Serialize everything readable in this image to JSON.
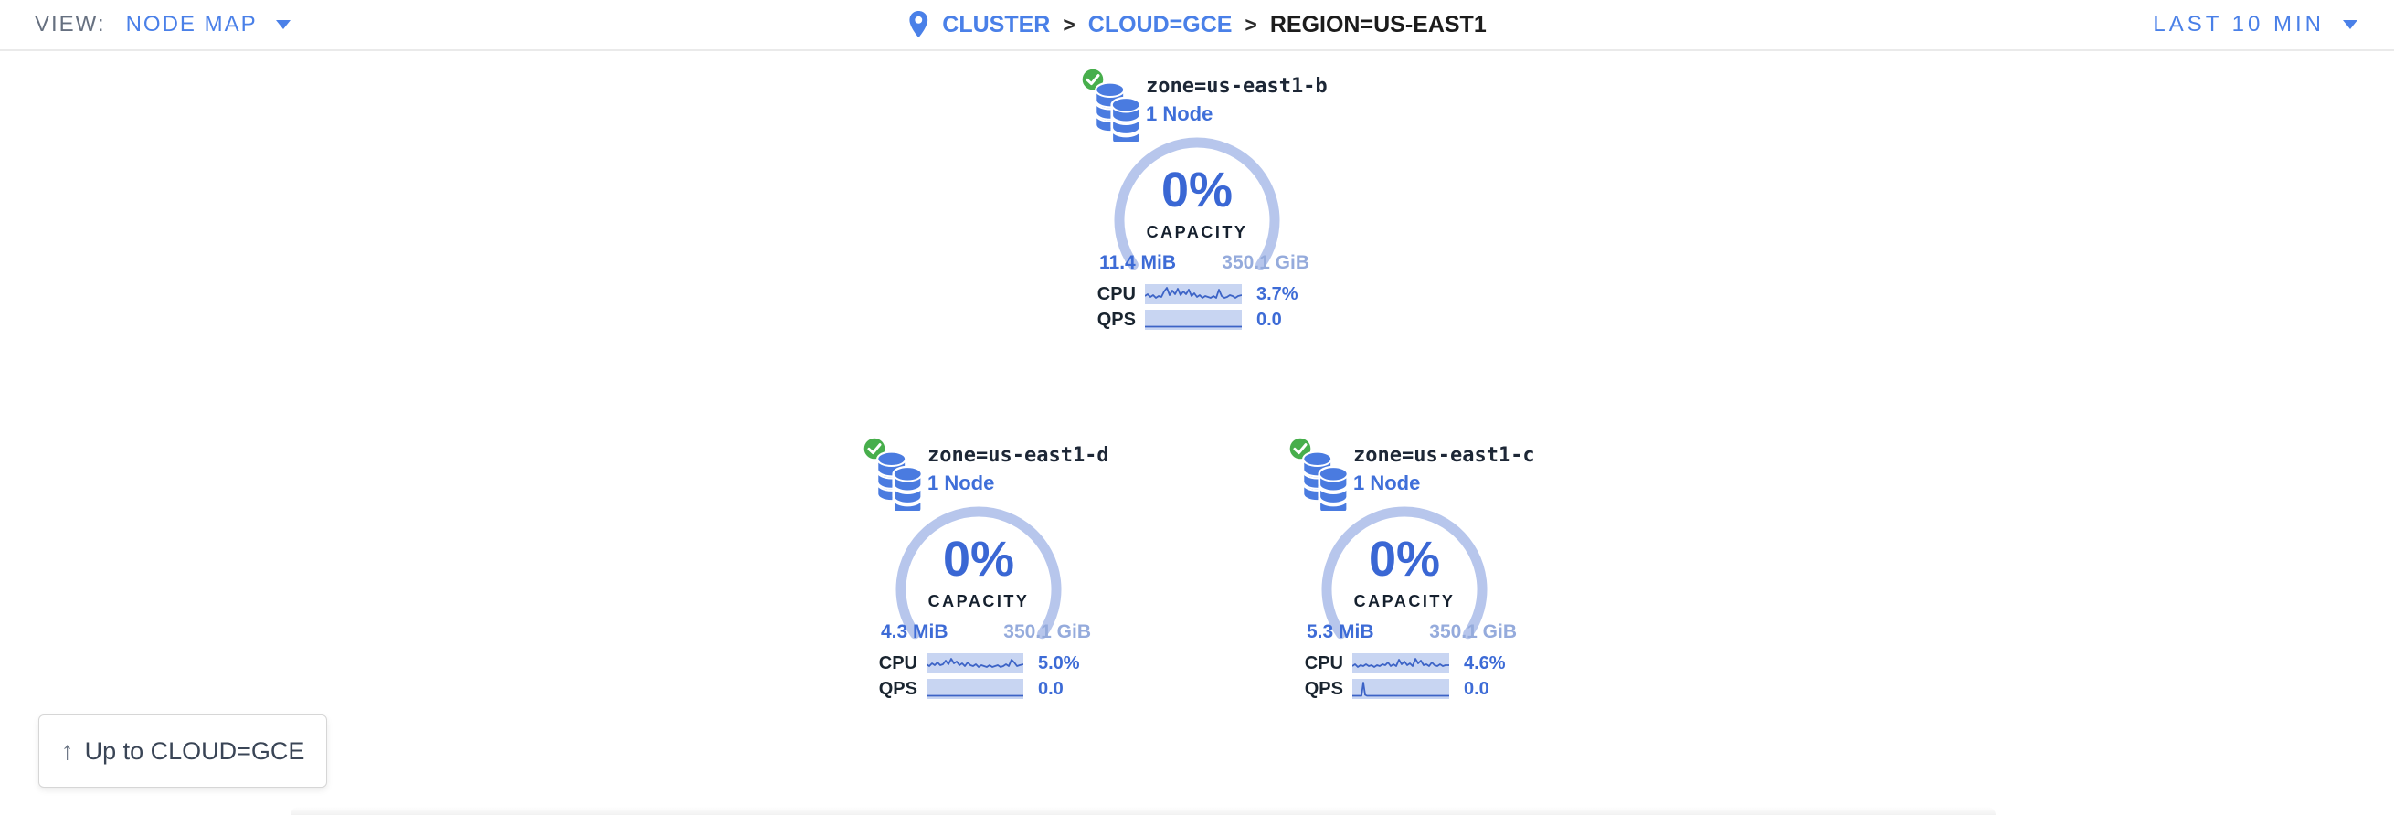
{
  "topbar": {
    "view_label": "VIEW:",
    "view_value": "NODE MAP",
    "time_range": "LAST 10 MIN",
    "breadcrumb": {
      "separator": ">",
      "items": [
        {
          "label": "CLUSTER"
        },
        {
          "label": "CLOUD=GCE"
        },
        {
          "label": "REGION=US-EAST1"
        }
      ]
    }
  },
  "zones": [
    {
      "name": "zone=us-east1-b",
      "nodes": "1 Node",
      "capacity_pct": "0%",
      "capacity_label": "CAPACITY",
      "used": "11.4 MiB",
      "total": "350.1 GiB",
      "cpu_label": "CPU",
      "cpu_value": "3.7%",
      "qps_label": "QPS",
      "qps_value": "0.0",
      "cpu_spark": [
        [
          0,
          13
        ],
        [
          3,
          11
        ],
        [
          6,
          14
        ],
        [
          9,
          12
        ],
        [
          12,
          15
        ],
        [
          15,
          13
        ],
        [
          18,
          14
        ],
        [
          21,
          8
        ],
        [
          24,
          4
        ],
        [
          27,
          12
        ],
        [
          30,
          7
        ],
        [
          33,
          11
        ],
        [
          36,
          5
        ],
        [
          39,
          12
        ],
        [
          42,
          8
        ],
        [
          45,
          11
        ],
        [
          48,
          6
        ],
        [
          51,
          13
        ],
        [
          54,
          10
        ],
        [
          57,
          14
        ],
        [
          60,
          12
        ],
        [
          63,
          15
        ],
        [
          66,
          13
        ],
        [
          69,
          14
        ],
        [
          72,
          15
        ],
        [
          75,
          13
        ],
        [
          78,
          15
        ],
        [
          81,
          6
        ],
        [
          84,
          13
        ],
        [
          87,
          15
        ],
        [
          90,
          14
        ],
        [
          93,
          12
        ],
        [
          96,
          13
        ],
        [
          99,
          15
        ],
        [
          102,
          13
        ],
        [
          106,
          12
        ]
      ],
      "qps_spark": [
        [
          0,
          18.5
        ],
        [
          106,
          18.5
        ]
      ]
    },
    {
      "name": "zone=us-east1-d",
      "nodes": "1 Node",
      "capacity_pct": "0%",
      "capacity_label": "CAPACITY",
      "used": "4.3 MiB",
      "total": "350.1 GiB",
      "cpu_label": "CPU",
      "cpu_value": "5.0%",
      "qps_label": "QPS",
      "qps_value": "0.0",
      "cpu_spark": [
        [
          0,
          12
        ],
        [
          3,
          14
        ],
        [
          6,
          11
        ],
        [
          9,
          13
        ],
        [
          12,
          10
        ],
        [
          15,
          13
        ],
        [
          18,
          12
        ],
        [
          21,
          8
        ],
        [
          24,
          12
        ],
        [
          27,
          6
        ],
        [
          30,
          11
        ],
        [
          33,
          9
        ],
        [
          36,
          13
        ],
        [
          39,
          11
        ],
        [
          42,
          14
        ],
        [
          45,
          10
        ],
        [
          48,
          13
        ],
        [
          51,
          14
        ],
        [
          54,
          12
        ],
        [
          57,
          15
        ],
        [
          60,
          13
        ],
        [
          63,
          14
        ],
        [
          66,
          15
        ],
        [
          69,
          13
        ],
        [
          72,
          15
        ],
        [
          75,
          14
        ],
        [
          78,
          13
        ],
        [
          81,
          15
        ],
        [
          84,
          14
        ],
        [
          87,
          12
        ],
        [
          90,
          14
        ],
        [
          93,
          7
        ],
        [
          96,
          10
        ],
        [
          99,
          14
        ],
        [
          102,
          13
        ],
        [
          106,
          12
        ]
      ],
      "qps_spark": [
        [
          0,
          18.5
        ],
        [
          106,
          18.5
        ]
      ]
    },
    {
      "name": "zone=us-east1-c",
      "nodes": "1 Node",
      "capacity_pct": "0%",
      "capacity_label": "CAPACITY",
      "used": "5.3 MiB",
      "total": "350.1 GiB",
      "cpu_label": "CPU",
      "cpu_value": "4.6%",
      "qps_label": "QPS",
      "qps_value": "0.0",
      "cpu_spark": [
        [
          0,
          14
        ],
        [
          3,
          12
        ],
        [
          6,
          15
        ],
        [
          9,
          13
        ],
        [
          12,
          14
        ],
        [
          15,
          12
        ],
        [
          18,
          14
        ],
        [
          21,
          13
        ],
        [
          24,
          15
        ],
        [
          27,
          13
        ],
        [
          30,
          14
        ],
        [
          33,
          12
        ],
        [
          36,
          13
        ],
        [
          39,
          10
        ],
        [
          42,
          14
        ],
        [
          45,
          12
        ],
        [
          48,
          14
        ],
        [
          51,
          7
        ],
        [
          54,
          12
        ],
        [
          57,
          9
        ],
        [
          60,
          13
        ],
        [
          63,
          11
        ],
        [
          66,
          14
        ],
        [
          69,
          6
        ],
        [
          72,
          11
        ],
        [
          75,
          8
        ],
        [
          78,
          13
        ],
        [
          81,
          12
        ],
        [
          84,
          14
        ],
        [
          87,
          10
        ],
        [
          90,
          13
        ],
        [
          93,
          14
        ],
        [
          96,
          12
        ],
        [
          99,
          14
        ],
        [
          102,
          13
        ],
        [
          106,
          13
        ]
      ],
      "qps_spark": [
        [
          0,
          18.5
        ],
        [
          10,
          18.5
        ],
        [
          12,
          4
        ],
        [
          14,
          17.5
        ],
        [
          16,
          18.5
        ],
        [
          106,
          18.5
        ]
      ]
    }
  ],
  "up_button": {
    "arrow": "↑",
    "label": "Up to CLOUD=GCE"
  },
  "colors": {
    "link_blue": "#4a80e8",
    "value_blue": "#3d6bd6",
    "light_blue": "#95abdc",
    "gauge_arc": "#b7c6ec",
    "spark_bg": "#c8d5f2",
    "spark_line": "#3c63c6",
    "health_green": "#47ae4c",
    "dark_text": "#1d2736"
  }
}
